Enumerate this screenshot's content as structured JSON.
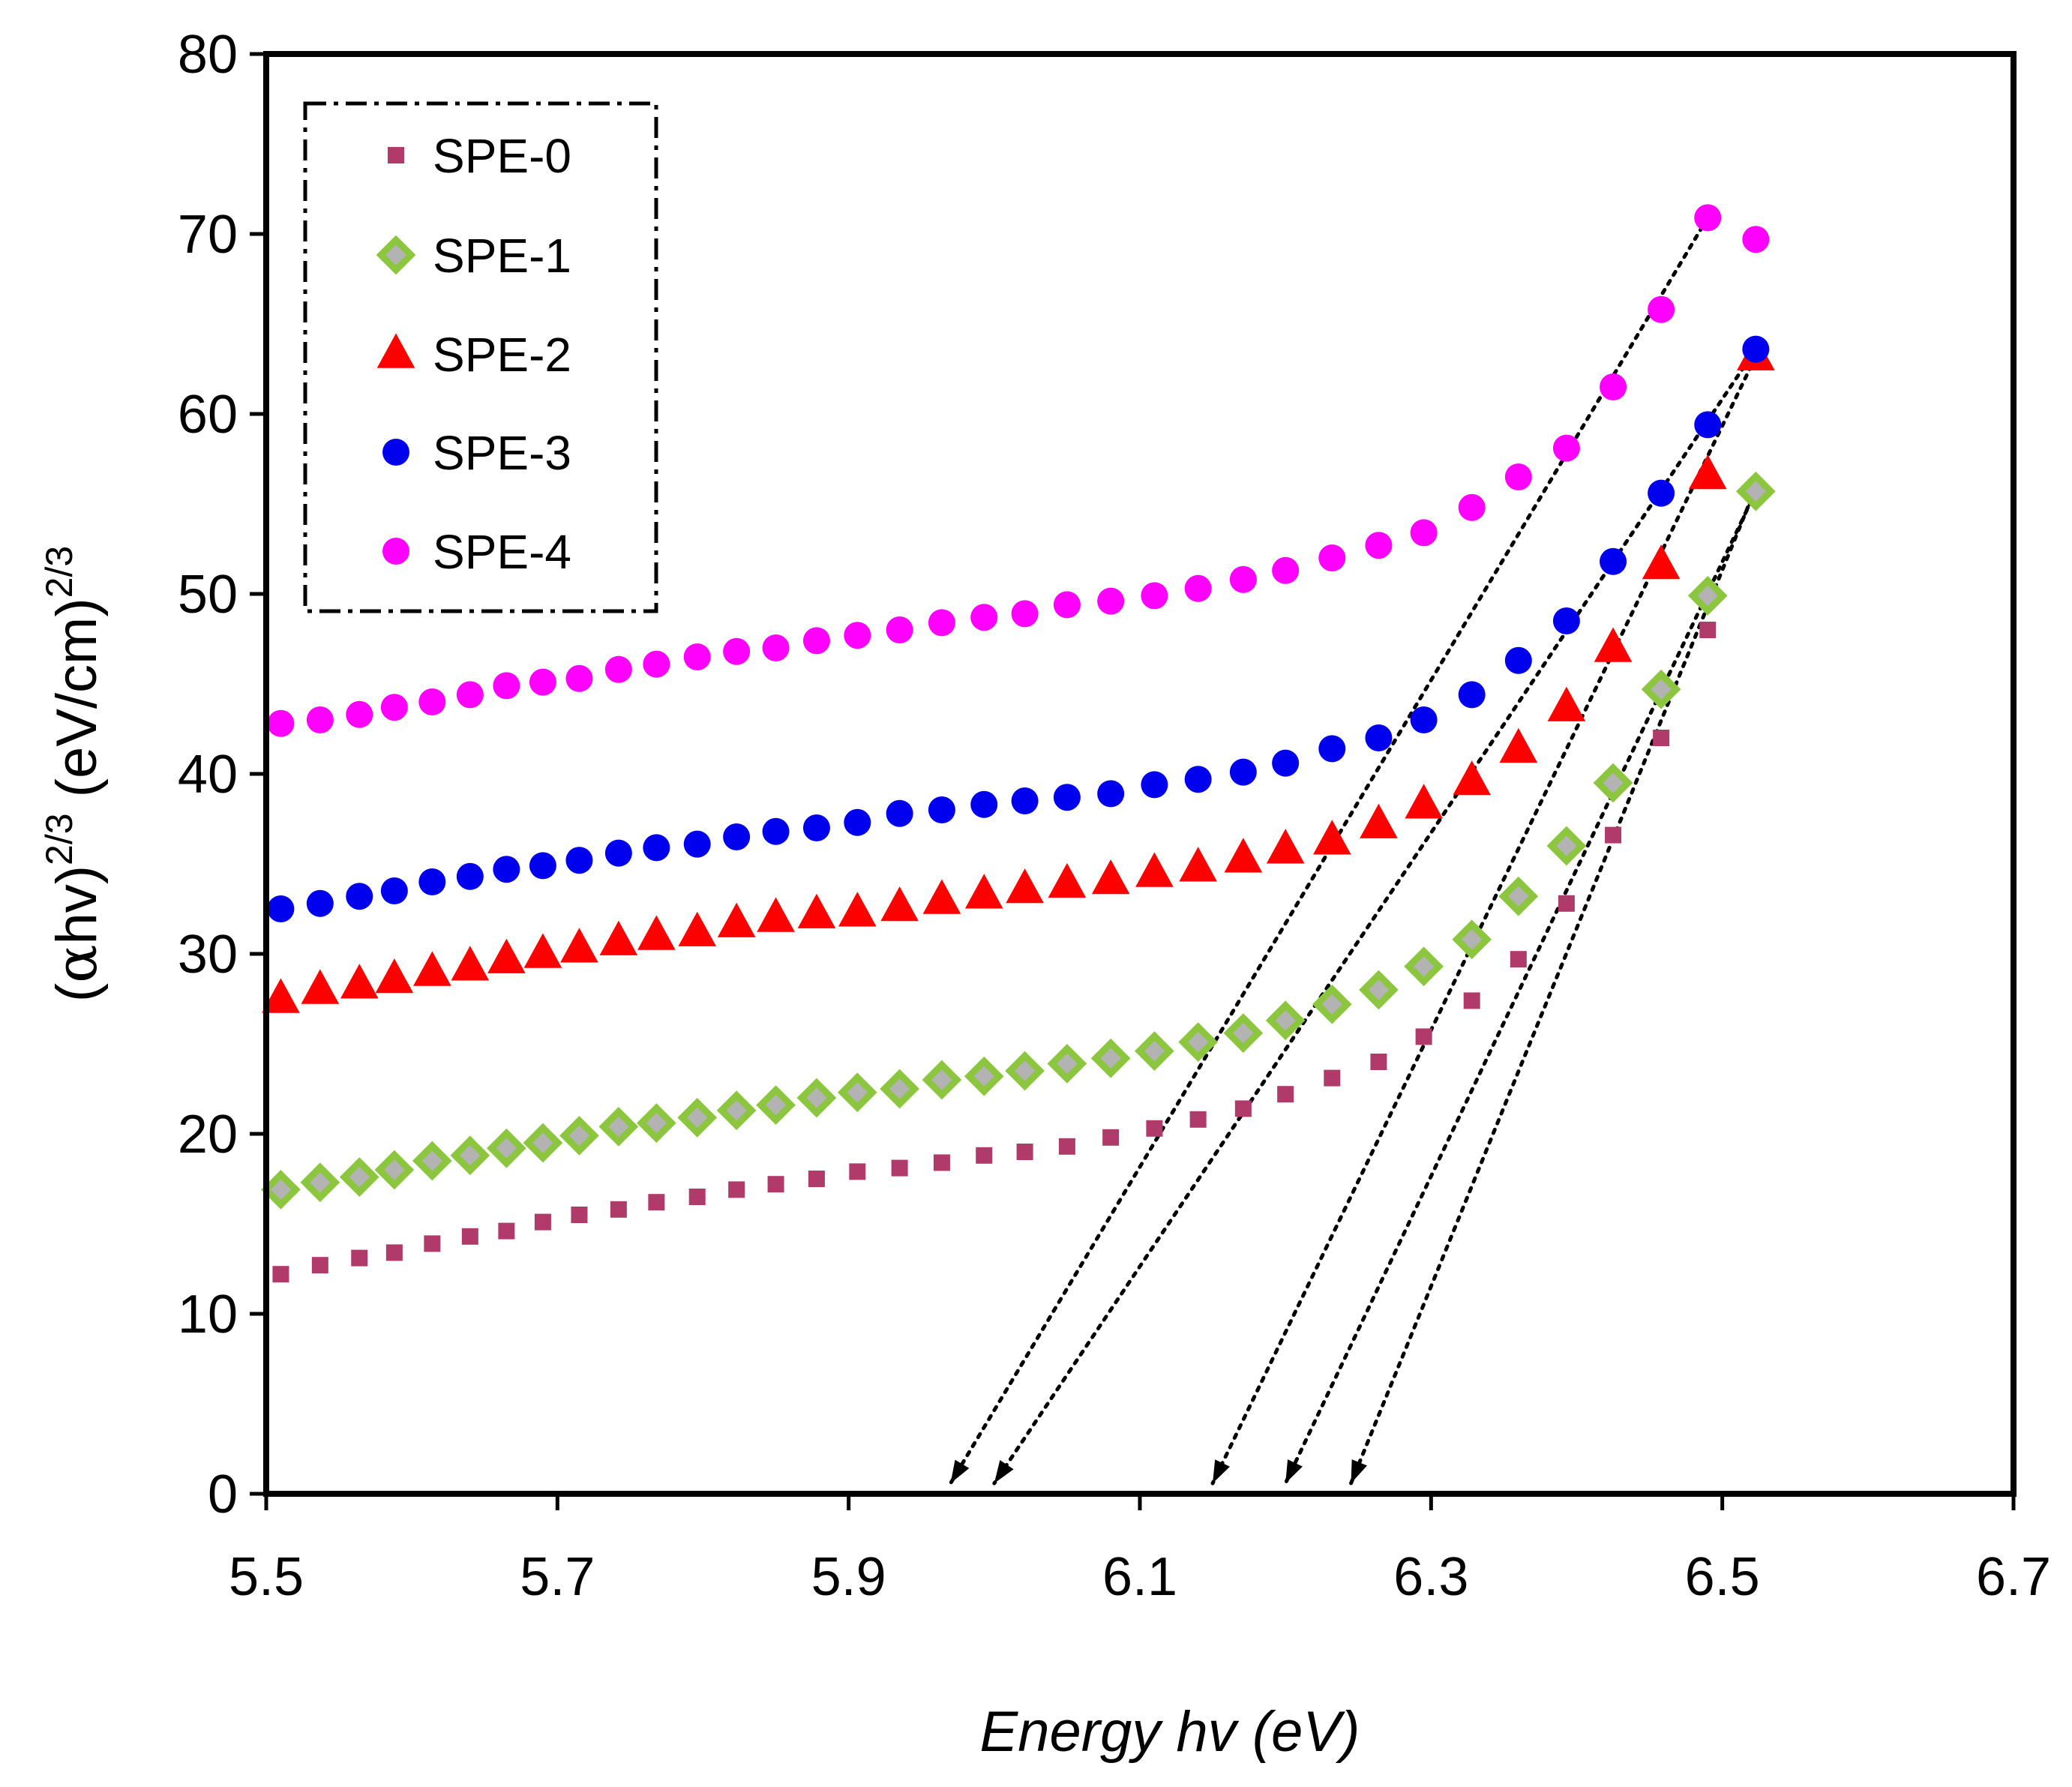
{
  "chart_data": {
    "type": "scatter",
    "title": "",
    "xlabel": "Energy hv (eV)",
    "ylabel_parts": {
      "open": "(",
      "alpha": "α",
      "hv": "hv)",
      "exp1": "2/3",
      "unit": " (eV/cm)",
      "exp2": "2/3"
    },
    "xlim": [
      5.5,
      6.7
    ],
    "ylim": [
      0,
      80
    ],
    "x_ticks": [
      "5.5",
      "5.7",
      "5.9",
      "6.1",
      "6.3",
      "6.5",
      "6.7"
    ],
    "x_tick_values": [
      5.5,
      5.7,
      5.9,
      6.1,
      6.3,
      6.5,
      6.7
    ],
    "y_ticks": [
      "0",
      "10",
      "20",
      "30",
      "40",
      "50",
      "60",
      "70",
      "80"
    ],
    "y_tick_values": [
      0,
      10,
      20,
      30,
      40,
      50,
      60,
      70,
      80
    ],
    "grid": false,
    "legend_position": "top-left",
    "x": [
      5.51,
      5.537,
      5.564,
      5.588,
      5.614,
      5.64,
      5.665,
      5.69,
      5.715,
      5.742,
      5.768,
      5.796,
      5.823,
      5.85,
      5.878,
      5.906,
      5.935,
      5.964,
      5.993,
      6.021,
      6.05,
      6.08,
      6.11,
      6.14,
      6.171,
      6.2,
      6.232,
      6.264,
      6.295,
      6.328,
      6.36,
      6.393,
      6.425,
      6.458,
      6.49,
      6.523
    ],
    "series": [
      {
        "name": "SPE-0",
        "color": "#b03a6a",
        "marker": "square",
        "values": [
          12.2,
          12.7,
          13.1,
          13.4,
          13.9,
          14.3,
          14.6,
          15.1,
          15.5,
          15.8,
          16.2,
          16.5,
          16.9,
          17.2,
          17.5,
          17.9,
          18.1,
          18.4,
          18.8,
          19.0,
          19.3,
          19.8,
          20.3,
          20.8,
          21.4,
          22.2,
          23.1,
          24.0,
          25.4,
          27.4,
          29.7,
          32.8,
          36.6,
          42.0,
          48.0,
          55.9
        ]
      },
      {
        "name": "SPE-1",
        "color": "#8cc63f",
        "marker": "diamond",
        "values": [
          16.9,
          17.3,
          17.6,
          18.0,
          18.5,
          18.8,
          19.2,
          19.5,
          19.9,
          20.4,
          20.6,
          20.9,
          21.3,
          21.6,
          22.0,
          22.3,
          22.5,
          23.0,
          23.2,
          23.5,
          23.9,
          24.2,
          24.6,
          25.1,
          25.6,
          26.3,
          27.2,
          28.0,
          29.3,
          30.8,
          33.2,
          36.0,
          39.5,
          44.7,
          49.9,
          55.7
        ]
      },
      {
        "name": "SPE-2",
        "color": "#ff0000",
        "marker": "triangle",
        "values": [
          27.5,
          28.0,
          28.3,
          28.6,
          29.0,
          29.3,
          29.7,
          30.0,
          30.3,
          30.7,
          31.0,
          31.2,
          31.7,
          32.0,
          32.2,
          32.3,
          32.6,
          33.0,
          33.3,
          33.6,
          33.9,
          34.1,
          34.5,
          34.8,
          35.3,
          35.8,
          36.3,
          37.2,
          38.3,
          39.6,
          41.4,
          43.7,
          47.0,
          51.6,
          56.6,
          63.2
        ]
      },
      {
        "name": "SPE-3",
        "color": "#0000ee",
        "marker": "circle",
        "values": [
          32.5,
          32.8,
          33.2,
          33.5,
          34.0,
          34.3,
          34.7,
          34.9,
          35.2,
          35.6,
          35.9,
          36.1,
          36.5,
          36.8,
          37.0,
          37.3,
          37.8,
          38.0,
          38.3,
          38.5,
          38.7,
          38.9,
          39.4,
          39.7,
          40.1,
          40.6,
          41.4,
          42.0,
          43.0,
          44.4,
          46.3,
          48.5,
          51.8,
          55.6,
          59.4,
          63.6
        ]
      },
      {
        "name": "SPE-4",
        "color": "#ff00ff",
        "marker": "circle",
        "values": [
          42.8,
          43.0,
          43.3,
          43.7,
          44.0,
          44.4,
          44.9,
          45.1,
          45.3,
          45.8,
          46.1,
          46.5,
          46.8,
          47.0,
          47.4,
          47.7,
          48.0,
          48.4,
          48.7,
          48.9,
          49.4,
          49.6,
          49.9,
          50.3,
          50.8,
          51.3,
          52.0,
          52.7,
          53.4,
          54.8,
          56.5,
          58.1,
          61.5,
          65.8,
          70.9,
          69.7
        ]
      }
    ],
    "extrapolation_lines": [
      {
        "from": [
          6.49,
          70.9
        ],
        "to_x": 5.97
      },
      {
        "from": [
          6.523,
          63.6
        ],
        "to_x": 6.0
      },
      {
        "from": [
          6.523,
          63.2
        ],
        "to_x": 6.15
      },
      {
        "from": [
          6.523,
          55.7
        ],
        "to_x": 6.2
      },
      {
        "from": [
          6.523,
          55.9
        ],
        "to_x": 6.245
      }
    ]
  }
}
